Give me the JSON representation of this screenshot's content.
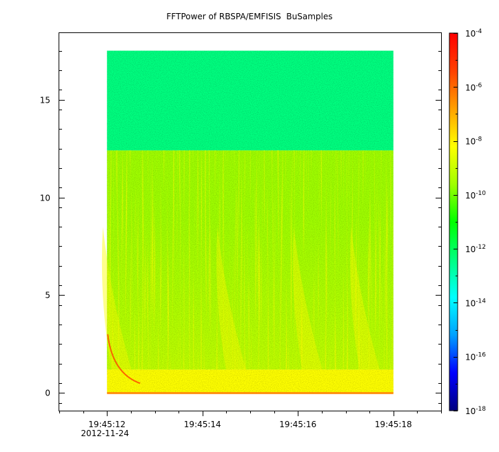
{
  "chart_data": {
    "type": "heatmap",
    "title": "FFTPower of RBSPA/EMFISIS  BuSamples",
    "xlabel": "",
    "ylabel": "",
    "x_tick_labels": [
      "19:45:12",
      "19:45:14",
      "19:45:16",
      "19:45:18"
    ],
    "x_date_label": "2012-11-24",
    "x_range": [
      "19:45:11",
      "19:45:19"
    ],
    "data_time_range": [
      "19:45:12",
      "19:45:18"
    ],
    "y_ticks": [
      0,
      5,
      10,
      15
    ],
    "y_range": [
      -0.9,
      18.4
    ],
    "data_freq_range": [
      0,
      17.5
    ],
    "colorbar": {
      "scale": "log",
      "range": [
        1e-18,
        0.0001
      ],
      "tick_exponents": [
        "-4",
        "-6",
        "-8",
        "-10",
        "-12",
        "-14",
        "-16",
        "-18"
      ],
      "tick_base": "10",
      "colors": [
        "#00007f",
        "#0000ff",
        "#00a0ff",
        "#00ffff",
        "#00ff80",
        "#00ff00",
        "#a0ff00",
        "#ffff00",
        "#ffa000",
        "#ff4000",
        "#ff0000"
      ]
    },
    "bands": [
      {
        "from": 12.4,
        "to": 17.5,
        "level": "1e-12"
      },
      {
        "from": 1.2,
        "to": 12.4,
        "level": "1e-10"
      },
      {
        "from": 0,
        "to": 1.2,
        "level": "1e-8"
      }
    ],
    "whistler_bursts_at": [
      "19:45:12",
      "19:45:14.4",
      "19:45:16",
      "19:45:17.2"
    ]
  }
}
